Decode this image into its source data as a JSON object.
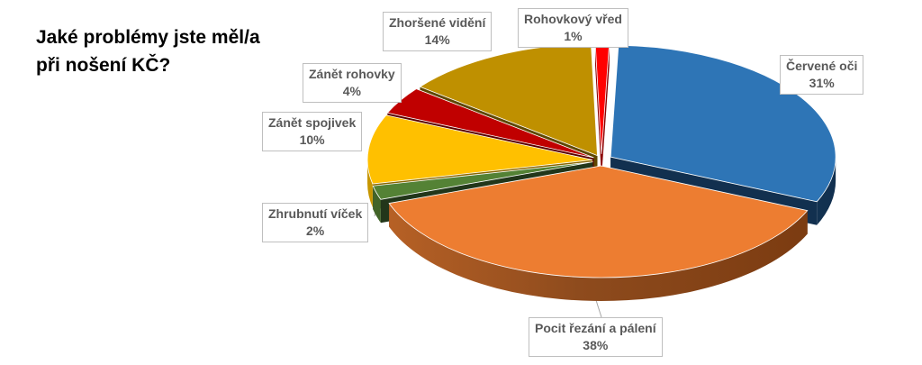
{
  "chart_data": {
    "type": "pie",
    "title_lines": [
      "Jaké problémy jste měl/a",
      "při nošení KČ?"
    ],
    "slices": [
      {
        "label": "Červené oči",
        "value_label": "31%",
        "value": 31,
        "color": "#2e75b6",
        "side_color": "#12304f"
      },
      {
        "label": "Pocit řezání a pálení",
        "value_label": "38%",
        "value": 38,
        "color": "#ed7d31",
        "side_color": "#7a3a10"
      },
      {
        "label": "Zhrubnutí víček",
        "value_label": "2%",
        "value": 2,
        "color": "#548235",
        "side_color": "#22361a"
      },
      {
        "label": "Zánět spojivek",
        "value_label": "10%",
        "value": 10,
        "color": "#ffc000",
        "side_color": "#8a6700"
      },
      {
        "label": "Zánět rohovky",
        "value_label": "4%",
        "value": 4,
        "color": "#c00000",
        "side_color": "#5a0000"
      },
      {
        "label": "Zhoršené vidění",
        "value_label": "14%",
        "value": 14,
        "color": "#bf9000",
        "side_color": "#5e4700"
      },
      {
        "label": "Rohovkový vřed",
        "value_label": "1%",
        "value": 1,
        "color": "#ff0000",
        "side_color": "#8b0000"
      }
    ],
    "legend": "none",
    "three_d": true
  }
}
